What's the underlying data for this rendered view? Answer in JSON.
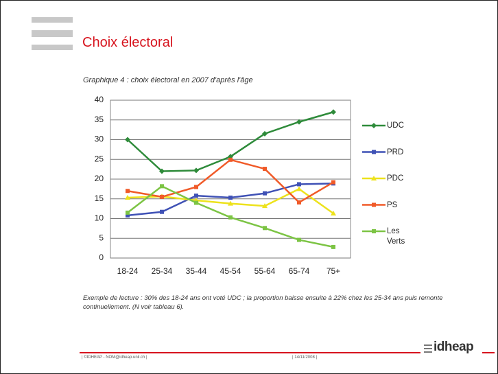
{
  "slide": {
    "title": "Choix électoral",
    "caption": "Exemple de lecture : 30% des 18-24 ans ont voté UDC ; la proportion baisse ensuite à 22% chez les 25-34 ans puis remonte continuellement. (N voir tableau 6).",
    "footer_left": "| ©IDHEAP - NOM@idheap.unil.ch |",
    "footer_date": "| 14/11/2008 |",
    "logo": "idheap"
  },
  "chart_data": {
    "type": "line",
    "title": "Graphique 4 : choix électoral en 2007 d'après l'âge",
    "categories": [
      "18-24",
      "25-34",
      "35-44",
      "45-54",
      "55-64",
      "65-74",
      "75+"
    ],
    "series": [
      {
        "name": "UDC",
        "color": "#2e8b3a",
        "marker": "diamond",
        "values": [
          30,
          22,
          22.2,
          25.7,
          31.5,
          34.5,
          37
        ]
      },
      {
        "name": "PRD",
        "color": "#3f51b5",
        "marker": "square",
        "values": [
          10.8,
          11.7,
          15.8,
          15.3,
          16.4,
          18.7,
          18.9
        ]
      },
      {
        "name": "PDC",
        "color": "#ede21c",
        "marker": "triangle",
        "values": [
          15.3,
          15.6,
          14.6,
          13.8,
          13.2,
          17.5,
          11.3
        ]
      },
      {
        "name": "PS",
        "color": "#f05a28",
        "marker": "square",
        "values": [
          17,
          15.5,
          18,
          24.9,
          22.6,
          14.1,
          19.2
        ]
      },
      {
        "name": "Les Verts",
        "color": "#7cc444",
        "marker": "square",
        "values": [
          11.5,
          18.2,
          14,
          10.3,
          7.6,
          4.6,
          2.8
        ]
      }
    ],
    "ylim": [
      0,
      40
    ],
    "yticks": [
      0,
      5,
      10,
      15,
      20,
      25,
      30,
      35,
      40
    ],
    "grid": true,
    "legend": "right"
  }
}
